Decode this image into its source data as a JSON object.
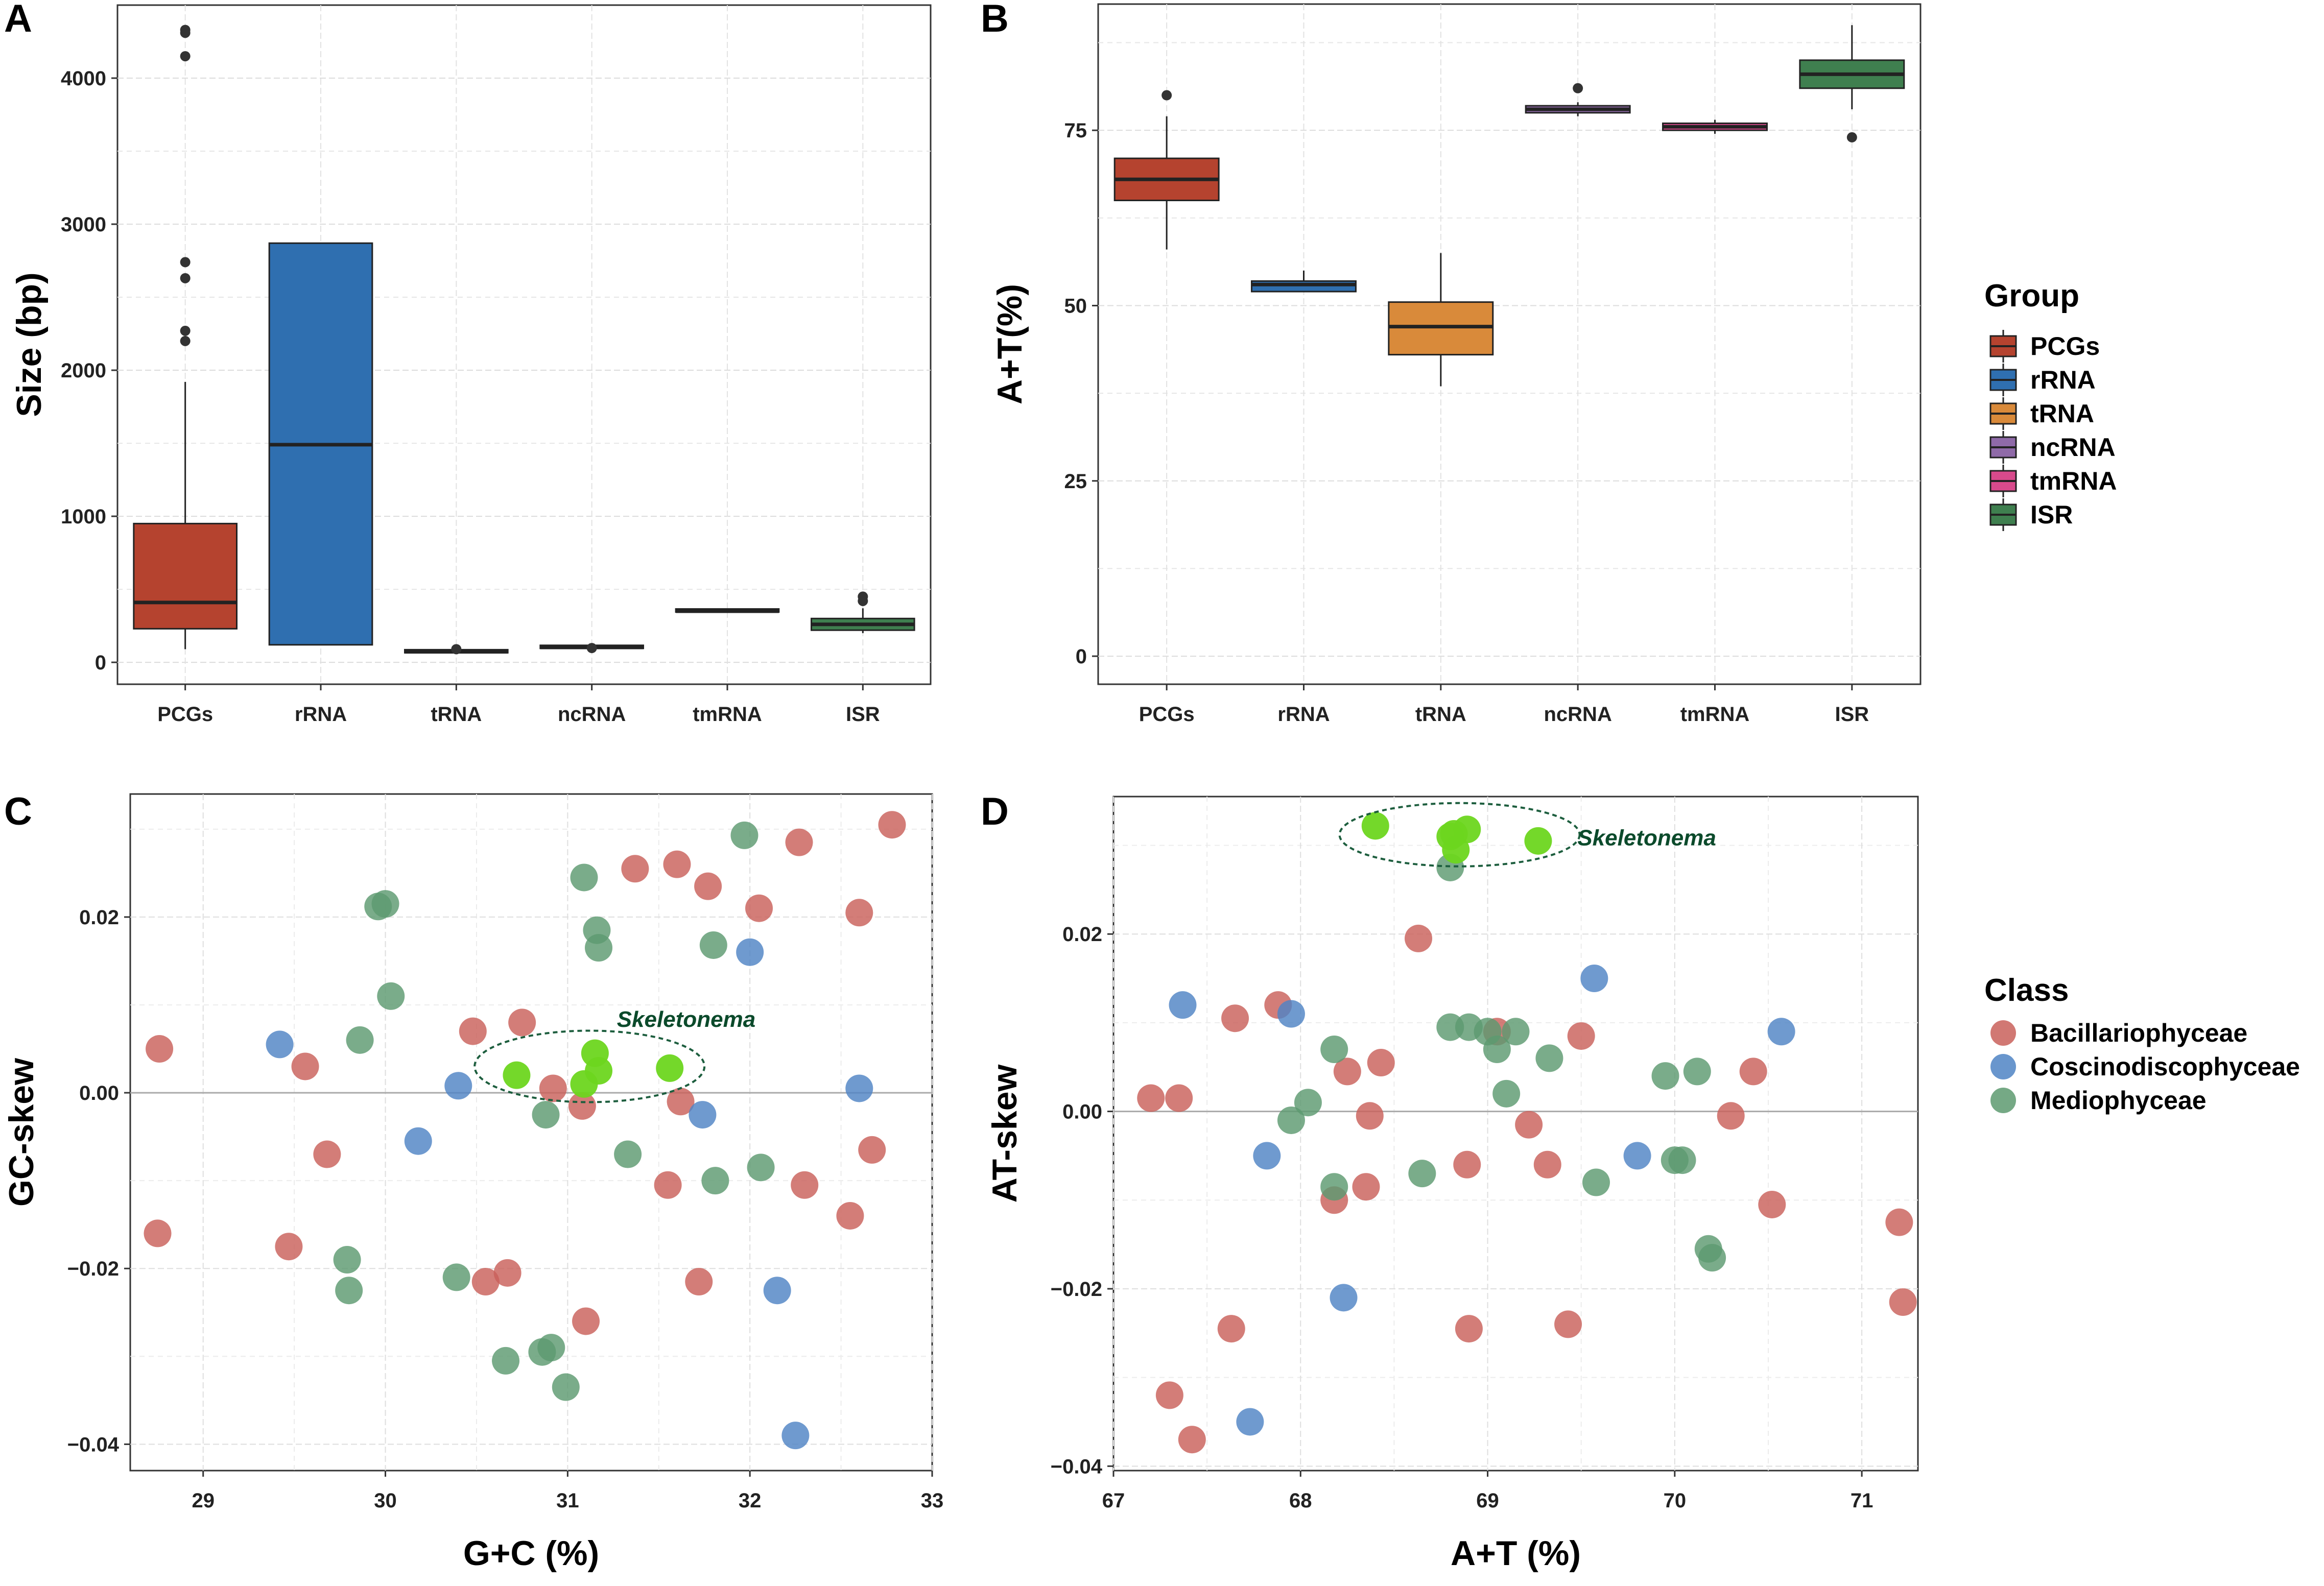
{
  "panels": {
    "A": "A",
    "B": "B",
    "C": "C",
    "D": "D"
  },
  "colors": {
    "PCGs": "#b5432f",
    "rRNA": "#2f6fb0",
    "tRNA": "#d98a3a",
    "ncRNA": "#8f6aa8",
    "tmRNA": "#d84a8c",
    "ISR": "#3f7f4f",
    "Bacillariophyceae": "#c9605a",
    "Coscinodiscophyceae": "#4f84c4",
    "Mediophyceae": "#5d9a70",
    "Skeletonema": "#6dd61f",
    "ellipse": "#1d5e3e"
  },
  "legend_group": {
    "title": "Group",
    "items": [
      {
        "label": "PCGs",
        "color": "#b5432f"
      },
      {
        "label": "rRNA",
        "color": "#2f6fb0"
      },
      {
        "label": "tRNA",
        "color": "#d98a3a"
      },
      {
        "label": "ncRNA",
        "color": "#8f6aa8"
      },
      {
        "label": "tmRNA",
        "color": "#d84a8c"
      },
      {
        "label": "ISR",
        "color": "#3f7f4f"
      }
    ]
  },
  "legend_class": {
    "title": "Class",
    "items": [
      {
        "label": "Bacillariophyceae",
        "color": "#c9605a"
      },
      {
        "label": "Coscinodiscophyceae",
        "color": "#4f84c4"
      },
      {
        "label": "Mediophyceae",
        "color": "#5d9a70"
      }
    ]
  },
  "chart_data": [
    {
      "id": "A",
      "type": "box",
      "ylabel": "Size (bp)",
      "ylim": [
        -150,
        4500
      ],
      "yticks": [
        0,
        1000,
        2000,
        3000,
        4000
      ],
      "categories": [
        "PCGs",
        "rRNA",
        "tRNA",
        "ncRNA",
        "tmRNA",
        "ISR"
      ],
      "boxes": [
        {
          "q1": 230,
          "median": 410,
          "q3": 950,
          "low": 90,
          "high": 1920,
          "outliers": [
            2200,
            2270,
            2630,
            2740,
            4150,
            4310,
            4330
          ]
        },
        {
          "q1": 120,
          "median": 1490,
          "q3": 2870,
          "low": 120,
          "high": 2870,
          "outliers": []
        },
        {
          "q1": 68,
          "median": 72,
          "q3": 76,
          "low": 65,
          "high": 80,
          "outliers": [
            90
          ]
        },
        {
          "q1": 98,
          "median": 102,
          "q3": 106,
          "low": 95,
          "high": 108,
          "outliers": [
            98
          ]
        },
        {
          "q1": 345,
          "median": 350,
          "q3": 355,
          "low": 345,
          "high": 355,
          "outliers": []
        },
        {
          "q1": 220,
          "median": 260,
          "q3": 300,
          "low": 200,
          "high": 370,
          "outliers": [
            420,
            450
          ]
        }
      ]
    },
    {
      "id": "B",
      "type": "box",
      "ylabel": "A+T(%)",
      "ylim": [
        -4,
        93
      ],
      "yticks": [
        0,
        25,
        50,
        75
      ],
      "categories": [
        "PCGs",
        "rRNA",
        "tRNA",
        "ncRNA",
        "tmRNA",
        "ISR"
      ],
      "boxes": [
        {
          "q1": 65,
          "median": 68,
          "q3": 71,
          "low": 58,
          "high": 77,
          "outliers": [
            80
          ]
        },
        {
          "q1": 52,
          "median": 53,
          "q3": 53.5,
          "low": 52,
          "high": 55,
          "outliers": []
        },
        {
          "q1": 43,
          "median": 47,
          "q3": 50.5,
          "low": 38.5,
          "high": 57.5,
          "outliers": []
        },
        {
          "q1": 77.5,
          "median": 78,
          "q3": 78.5,
          "low": 77,
          "high": 79,
          "outliers": [
            81
          ]
        },
        {
          "q1": 75,
          "median": 75.5,
          "q3": 76,
          "low": 74.5,
          "high": 76.5,
          "outliers": []
        },
        {
          "q1": 81,
          "median": 83,
          "q3": 85,
          "low": 78,
          "high": 90,
          "outliers": [
            74
          ]
        }
      ]
    },
    {
      "id": "C",
      "type": "scatter",
      "xlabel": "G+C (%)",
      "ylabel": "GC-skew",
      "xlim": [
        28.6,
        33.0
      ],
      "ylim": [
        -0.043,
        0.034
      ],
      "xticks": [
        29,
        30,
        31,
        32,
        33
      ],
      "yticks": [
        -0.04,
        -0.02,
        0.0,
        0.02
      ],
      "annotation": "Skeletonema",
      "points": {
        "Bacillariophyceae": [
          [
            28.75,
            -0.016
          ],
          [
            28.76,
            0.005
          ],
          [
            29.47,
            -0.0175
          ],
          [
            29.56,
            0.003
          ],
          [
            29.68,
            -0.007
          ],
          [
            30.48,
            0.007
          ],
          [
            30.55,
            -0.0215
          ],
          [
            30.67,
            -0.0205
          ],
          [
            30.75,
            0.008
          ],
          [
            30.92,
            0.0005
          ],
          [
            31.08,
            -0.0015
          ],
          [
            31.1,
            -0.026
          ],
          [
            31.37,
            0.0255
          ],
          [
            31.55,
            -0.0105
          ],
          [
            31.6,
            0.026
          ],
          [
            31.62,
            -0.001
          ],
          [
            31.72,
            -0.0215
          ],
          [
            31.77,
            0.0235
          ],
          [
            32.05,
            0.021
          ],
          [
            32.27,
            0.0285
          ],
          [
            32.3,
            -0.0105
          ],
          [
            32.55,
            -0.014
          ],
          [
            32.6,
            0.0205
          ],
          [
            32.67,
            -0.0065
          ],
          [
            32.78,
            0.0305
          ]
        ],
        "Coscinodiscophyceae": [
          [
            29.42,
            0.0055
          ],
          [
            30.18,
            -0.0055
          ],
          [
            30.4,
            0.0008
          ],
          [
            31.74,
            -0.0025
          ],
          [
            32.0,
            0.016
          ],
          [
            32.15,
            -0.0225
          ],
          [
            32.25,
            -0.039
          ],
          [
            32.6,
            0.0005
          ]
        ],
        "Mediophyceae": [
          [
            29.79,
            -0.019
          ],
          [
            29.8,
            -0.0225
          ],
          [
            29.86,
            0.006
          ],
          [
            29.96,
            0.0212
          ],
          [
            30.0,
            0.0215
          ],
          [
            30.03,
            0.011
          ],
          [
            30.39,
            -0.021
          ],
          [
            30.66,
            -0.0305
          ],
          [
            30.86,
            -0.0295
          ],
          [
            30.88,
            -0.0025
          ],
          [
            30.91,
            -0.029
          ],
          [
            30.99,
            -0.0335
          ],
          [
            31.09,
            0.0245
          ],
          [
            31.16,
            0.0185
          ],
          [
            31.17,
            0.0165
          ],
          [
            31.33,
            -0.007
          ],
          [
            31.8,
            0.0168
          ],
          [
            31.81,
            -0.01
          ],
          [
            31.97,
            0.0293
          ],
          [
            32.06,
            -0.0085
          ]
        ],
        "Skeletonema": [
          [
            30.72,
            0.002
          ],
          [
            31.09,
            0.001
          ],
          [
            31.15,
            0.0045
          ],
          [
            31.17,
            0.0025
          ],
          [
            31.56,
            0.0028
          ]
        ]
      }
    },
    {
      "id": "D",
      "type": "scatter",
      "xlabel": "A+T (%)",
      "ylabel": "AT-skew",
      "xlim": [
        67.0,
        71.3
      ],
      "ylim": [
        -0.0405,
        0.0355
      ],
      "xticks": [
        67,
        68,
        69,
        70,
        71
      ],
      "yticks": [
        -0.04,
        -0.02,
        0.0,
        0.02
      ],
      "annotation": "Skeletonema",
      "points": {
        "Bacillariophyceae": [
          [
            67.2,
            0.0015
          ],
          [
            67.3,
            -0.032
          ],
          [
            67.35,
            0.0015
          ],
          [
            67.42,
            -0.037
          ],
          [
            67.63,
            -0.0245
          ],
          [
            67.65,
            0.0105
          ],
          [
            67.88,
            0.012
          ],
          [
            68.18,
            -0.01
          ],
          [
            68.25,
            0.0045
          ],
          [
            68.35,
            -0.0085
          ],
          [
            68.37,
            -0.0005
          ],
          [
            68.43,
            0.0055
          ],
          [
            68.63,
            0.0195
          ],
          [
            68.89,
            -0.006
          ],
          [
            68.9,
            -0.0245
          ],
          [
            69.05,
            0.009
          ],
          [
            69.22,
            -0.0015
          ],
          [
            69.32,
            -0.006
          ],
          [
            69.43,
            -0.024
          ],
          [
            69.5,
            0.0085
          ],
          [
            70.3,
            -0.0005
          ],
          [
            70.42,
            0.0045
          ],
          [
            70.52,
            -0.0105
          ],
          [
            71.2,
            -0.0125
          ],
          [
            71.22,
            -0.0215
          ]
        ],
        "Coscinodiscophyceae": [
          [
            67.37,
            0.012
          ],
          [
            67.73,
            -0.035
          ],
          [
            67.82,
            -0.005
          ],
          [
            67.95,
            0.011
          ],
          [
            68.23,
            -0.021
          ],
          [
            69.57,
            0.015
          ],
          [
            69.8,
            -0.005
          ],
          [
            70.57,
            0.009
          ]
        ],
        "Mediophyceae": [
          [
            67.95,
            -0.001
          ],
          [
            68.04,
            0.001
          ],
          [
            68.18,
            -0.0085
          ],
          [
            68.18,
            0.007
          ],
          [
            68.65,
            -0.007
          ],
          [
            68.8,
            0.0095
          ],
          [
            68.8,
            0.0275
          ],
          [
            68.9,
            0.0095
          ],
          [
            69.0,
            0.009
          ],
          [
            69.05,
            0.007
          ],
          [
            69.1,
            0.002
          ],
          [
            69.15,
            0.009
          ],
          [
            69.33,
            0.006
          ],
          [
            69.58,
            -0.008
          ],
          [
            69.95,
            0.004
          ],
          [
            70.0,
            -0.0055
          ],
          [
            70.04,
            -0.0055
          ],
          [
            70.12,
            0.0045
          ],
          [
            70.18,
            -0.0155
          ],
          [
            70.2,
            -0.0165
          ]
        ],
        "Skeletonema": [
          [
            68.4,
            0.0322
          ],
          [
            68.8,
            0.031
          ],
          [
            68.82,
            0.0313
          ],
          [
            68.89,
            0.0318
          ],
          [
            69.27,
            0.0305
          ],
          [
            68.83,
            0.0295
          ]
        ]
      }
    }
  ]
}
